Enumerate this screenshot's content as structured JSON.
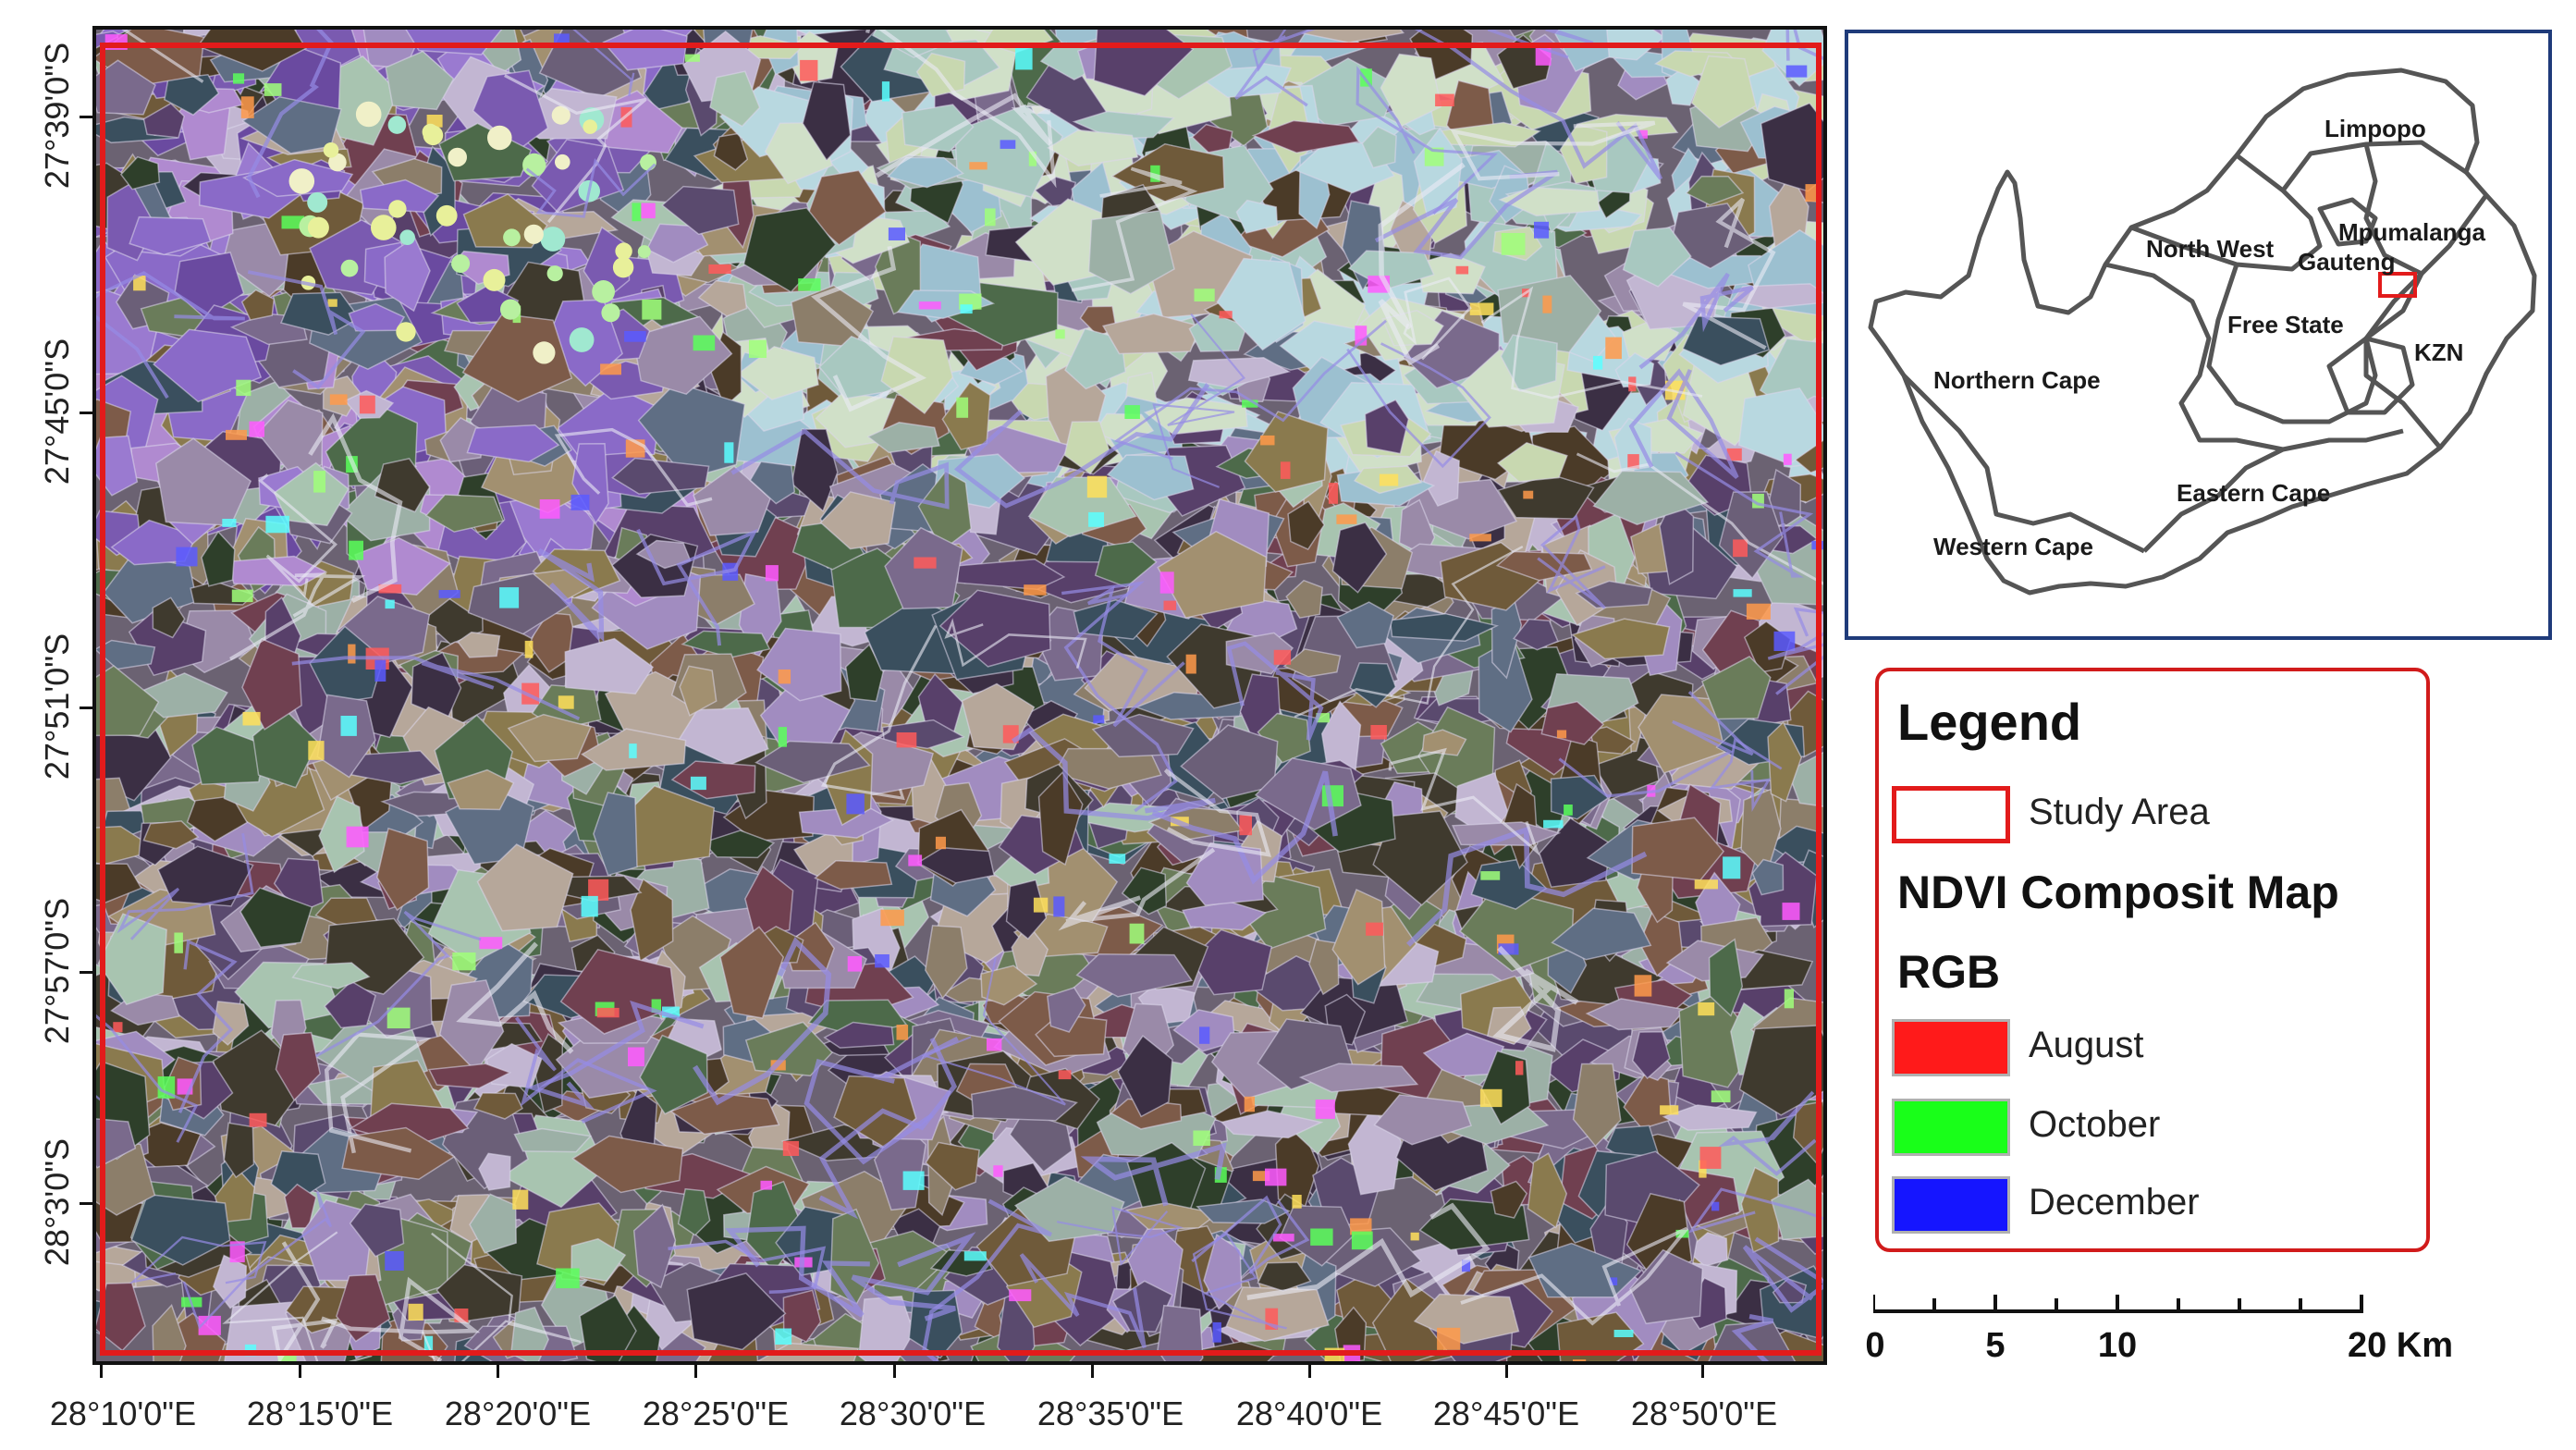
{
  "map": {
    "x_ticks": [
      "28°10'0\"E",
      "28°15'0\"E",
      "28°20'0\"E",
      "28°25'0\"E",
      "28°30'0\"E",
      "28°35'0\"E",
      "28°40'0\"E",
      "28°45'0\"E",
      "28°50'0\"E"
    ],
    "y_ticks": [
      "27°39'0\"S",
      "27°45'0\"S",
      "27°51'0\"S",
      "27°57'0\"S",
      "28°3'0\"S"
    ]
  },
  "inset": {
    "provinces": [
      "Limpopo",
      "North West",
      "Mpumalanga",
      "Gauteng",
      "Free State",
      "KZN",
      "Northern Cape",
      "Eastern Cape",
      "Western Cape"
    ],
    "outline_color": "#555555",
    "study_marker_color": "#e21b1b"
  },
  "legend": {
    "title": "Legend",
    "study_area_label": "Study Area",
    "composite_heading": "NDVI Composit Map",
    "rgb_heading": "RGB",
    "bands": [
      {
        "label": "August",
        "color": "#ff1a1a"
      },
      {
        "label": "October",
        "color": "#19ff19"
      },
      {
        "label": "December",
        "color": "#1515ff"
      }
    ],
    "study_area_color": "#e21b1b"
  },
  "scale_bar": {
    "labels": [
      "0",
      "5",
      "10",
      "20 Km"
    ]
  }
}
